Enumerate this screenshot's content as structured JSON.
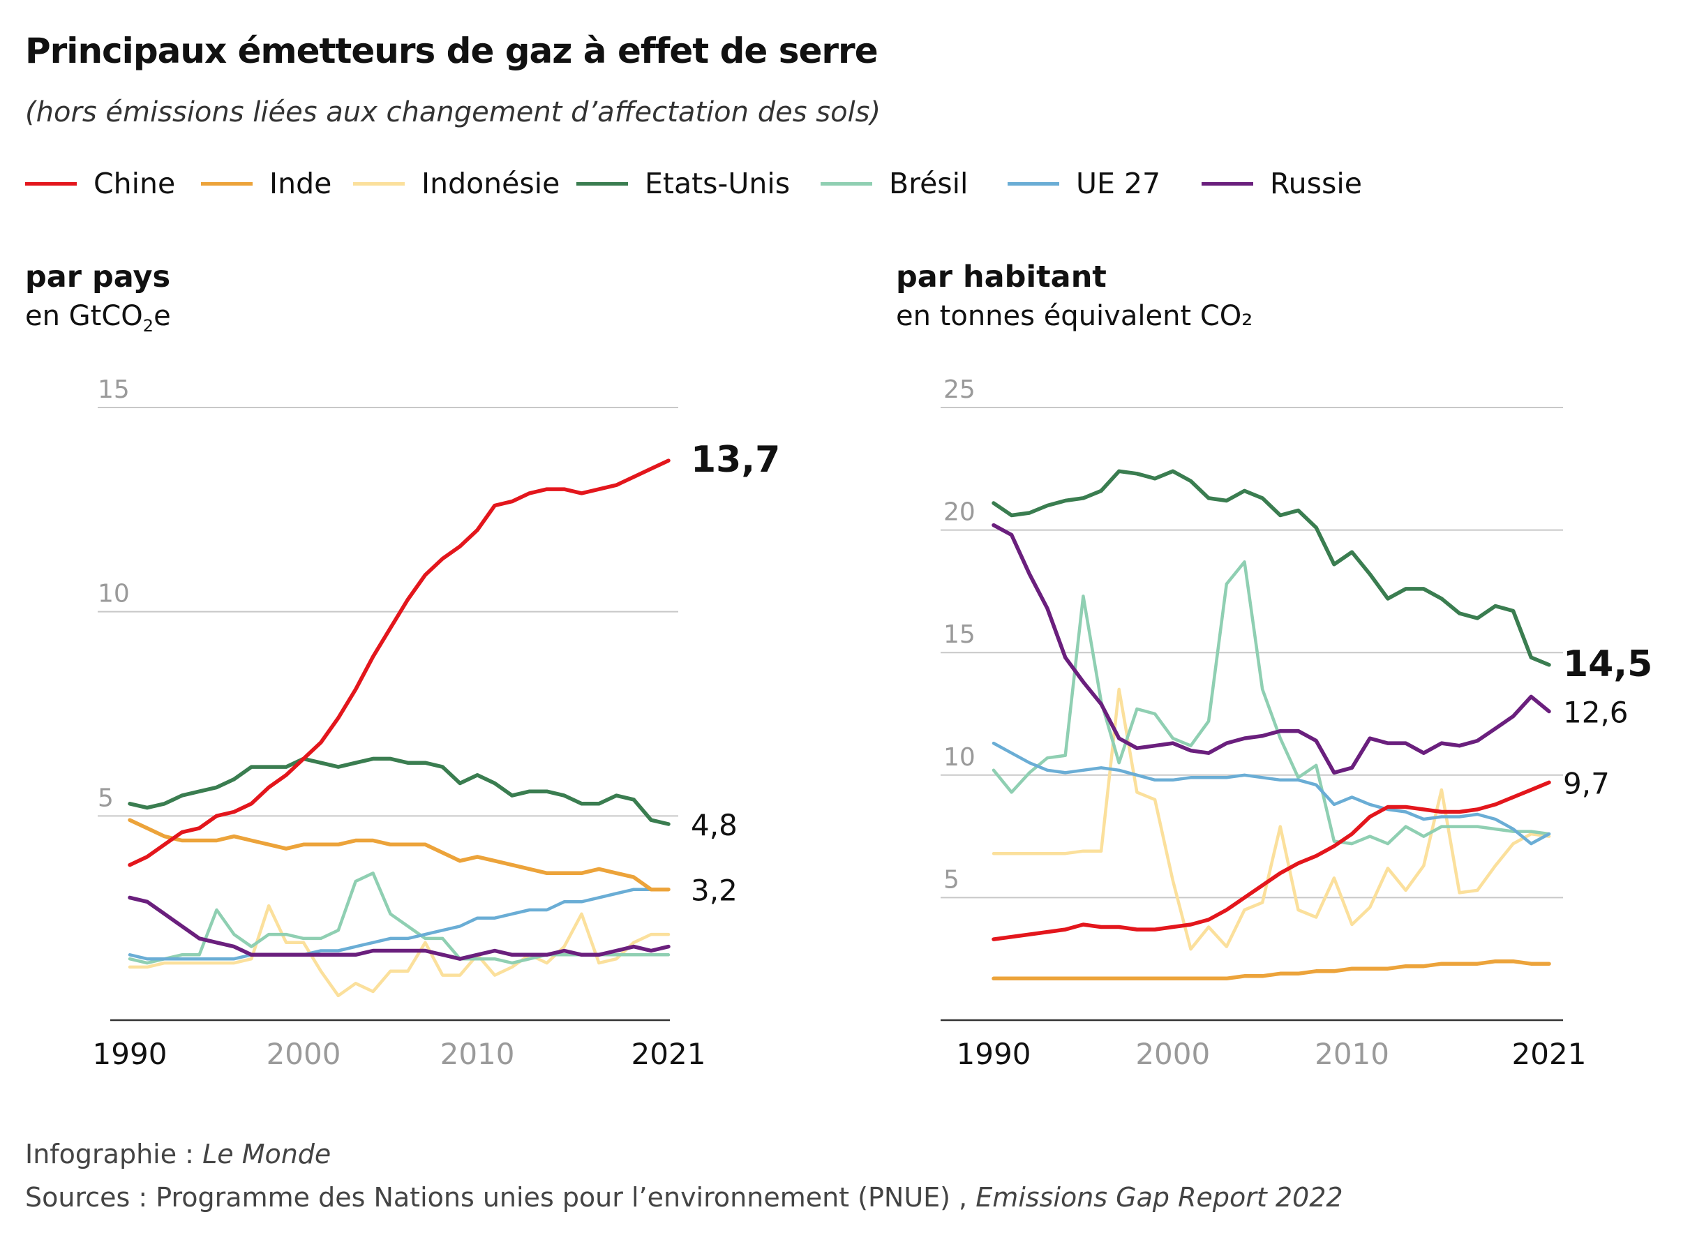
{
  "title": "Principaux émetteurs de gaz à effet  de serre",
  "subtitle": "(hors émissions liées aux changement d’affectation des sols)",
  "legend": [
    {
      "label": "Chine",
      "color": "#e3161c"
    },
    {
      "label": "Inde",
      "color": "#eca33a"
    },
    {
      "label": "Indonésie",
      "color": "#fbe09c"
    },
    {
      "label": "Etats-Unis",
      "color": "#3a7d50"
    },
    {
      "label": "Brésil",
      "color": "#8fcfb2"
    },
    {
      "label": "UE 27",
      "color": "#6aadd5"
    },
    {
      "label": "Russie",
      "color": "#6a1f7d"
    }
  ],
  "panels": {
    "left": {
      "title": "par pays",
      "unit_prefix": "en GtCO",
      "unit_sub": "2",
      "unit_suffix": "e"
    },
    "right": {
      "title": "par habitant",
      "unit": "en tonnes équivalent CO₂"
    }
  },
  "footer": {
    "line1_prefix": "Infographie : ",
    "line1_em": "Le Monde",
    "line2_prefix": "Sources : Programme des Nations unies pour l’environnement (PNUE) , ",
    "line2_em": "Emissions Gap Report 2022"
  },
  "chart_data": [
    {
      "type": "line",
      "title": "par pays",
      "ylabel": "en GtCO2e",
      "ylim": [
        0,
        15
      ],
      "xlim": [
        1990,
        2021
      ],
      "yticks": [
        5,
        10,
        15
      ],
      "xticks": [
        1990,
        2000,
        2010,
        2021
      ],
      "grid": true,
      "x": [
        1990,
        1991,
        1992,
        1993,
        1994,
        1995,
        1996,
        1997,
        1998,
        1999,
        2000,
        2001,
        2002,
        2003,
        2004,
        2005,
        2006,
        2007,
        2008,
        2009,
        2010,
        2011,
        2012,
        2013,
        2014,
        2015,
        2016,
        2017,
        2018,
        2019,
        2020,
        2021
      ],
      "series": [
        {
          "name": "Chine",
          "color": "#e3161c",
          "values": [
            3.8,
            4.0,
            4.3,
            4.6,
            4.7,
            5.0,
            5.1,
            5.3,
            5.7,
            6.0,
            6.4,
            6.8,
            7.4,
            8.1,
            8.9,
            9.6,
            10.3,
            10.9,
            11.3,
            11.6,
            12.0,
            12.6,
            12.7,
            12.9,
            13.0,
            13.0,
            12.9,
            13.0,
            13.1,
            13.3,
            13.5,
            13.7
          ]
        },
        {
          "name": "Inde",
          "color": "#eca33a",
          "values": [
            4.9,
            4.7,
            4.5,
            4.4,
            4.4,
            4.4,
            4.5,
            4.4,
            4.3,
            4.2,
            4.3,
            4.3,
            4.3,
            4.4,
            4.4,
            4.3,
            4.3,
            4.3,
            4.1,
            3.9,
            4.0,
            3.9,
            3.8,
            3.7,
            3.6,
            3.6,
            3.6,
            3.7,
            3.6,
            3.5,
            3.2,
            3.2
          ]
        },
        {
          "name": "Indonésie",
          "color": "#fbe09c",
          "values": [
            1.3,
            1.3,
            1.4,
            1.4,
            1.4,
            1.4,
            1.4,
            1.5,
            2.8,
            1.9,
            1.9,
            1.2,
            0.6,
            0.9,
            0.7,
            1.2,
            1.2,
            1.9,
            1.1,
            1.1,
            1.6,
            1.1,
            1.3,
            1.6,
            1.4,
            1.8,
            2.6,
            1.4,
            1.5,
            1.9,
            2.1,
            2.1
          ]
        },
        {
          "name": "Etats-Unis",
          "color": "#3a7d50",
          "values": [
            5.3,
            5.2,
            5.3,
            5.5,
            5.6,
            5.7,
            5.9,
            6.2,
            6.2,
            6.2,
            6.4,
            6.3,
            6.2,
            6.3,
            6.4,
            6.4,
            6.3,
            6.3,
            6.2,
            5.8,
            6.0,
            5.8,
            5.5,
            5.6,
            5.6,
            5.5,
            5.3,
            5.3,
            5.5,
            5.4,
            4.9,
            4.8
          ]
        },
        {
          "name": "Brésil",
          "color": "#8fcfb2",
          "values": [
            1.5,
            1.4,
            1.5,
            1.6,
            1.6,
            2.7,
            2.1,
            1.8,
            2.1,
            2.1,
            2.0,
            2.0,
            2.2,
            3.4,
            3.6,
            2.6,
            2.3,
            2.0,
            2.0,
            1.5,
            1.5,
            1.5,
            1.4,
            1.5,
            1.6,
            1.6,
            1.6,
            1.6,
            1.6,
            1.6,
            1.6,
            1.6
          ]
        },
        {
          "name": "UE 27",
          "color": "#6aadd5",
          "values": [
            1.6,
            1.5,
            1.5,
            1.5,
            1.5,
            1.5,
            1.5,
            1.6,
            1.6,
            1.6,
            1.6,
            1.7,
            1.7,
            1.8,
            1.9,
            2.0,
            2.0,
            2.1,
            2.2,
            2.3,
            2.5,
            2.5,
            2.6,
            2.7,
            2.7,
            2.9,
            2.9,
            3.0,
            3.1,
            3.2,
            3.2,
            3.2
          ]
        },
        {
          "name": "Russie",
          "color": "#6a1f7d",
          "values": [
            3.0,
            2.9,
            2.6,
            2.3,
            2.0,
            1.9,
            1.8,
            1.6,
            1.6,
            1.6,
            1.6,
            1.6,
            1.6,
            1.6,
            1.7,
            1.7,
            1.7,
            1.7,
            1.6,
            1.5,
            1.6,
            1.7,
            1.6,
            1.6,
            1.6,
            1.7,
            1.6,
            1.6,
            1.7,
            1.8,
            1.7,
            1.8
          ]
        }
      ],
      "end_labels": [
        {
          "series": "Chine",
          "text": "13,7",
          "bold": true
        },
        {
          "series": "Etats-Unis",
          "text": "4,8",
          "bold": false
        },
        {
          "series": "Inde",
          "text": "3,2",
          "bold": false
        }
      ]
    },
    {
      "type": "line",
      "title": "par habitant",
      "ylabel": "en tonnes équivalent CO₂",
      "ylim": [
        0,
        25
      ],
      "xlim": [
        1990,
        2021
      ],
      "yticks": [
        5,
        10,
        15,
        20,
        25
      ],
      "xticks": [
        1990,
        2000,
        2010,
        2021
      ],
      "grid": true,
      "x": [
        1990,
        1991,
        1992,
        1993,
        1994,
        1995,
        1996,
        1997,
        1998,
        1999,
        2000,
        2001,
        2002,
        2003,
        2004,
        2005,
        2006,
        2007,
        2008,
        2009,
        2010,
        2011,
        2012,
        2013,
        2014,
        2015,
        2016,
        2017,
        2018,
        2019,
        2020,
        2021
      ],
      "series": [
        {
          "name": "Chine",
          "color": "#e3161c",
          "values": [
            3.3,
            3.4,
            3.5,
            3.6,
            3.7,
            3.9,
            3.8,
            3.8,
            3.7,
            3.7,
            3.8,
            3.9,
            4.1,
            4.5,
            5.0,
            5.5,
            6.0,
            6.4,
            6.7,
            7.1,
            7.6,
            8.3,
            8.7,
            8.7,
            8.6,
            8.5,
            8.5,
            8.6,
            8.8,
            9.1,
            9.4,
            9.7
          ]
        },
        {
          "name": "Inde",
          "color": "#eca33a",
          "values": [
            1.7,
            1.7,
            1.7,
            1.7,
            1.7,
            1.7,
            1.7,
            1.7,
            1.7,
            1.7,
            1.7,
            1.7,
            1.7,
            1.7,
            1.8,
            1.8,
            1.9,
            1.9,
            2.0,
            2.0,
            2.1,
            2.1,
            2.1,
            2.2,
            2.2,
            2.3,
            2.3,
            2.3,
            2.4,
            2.4,
            2.3,
            2.3
          ]
        },
        {
          "name": "Indonésie",
          "color": "#fbe09c",
          "values": [
            6.8,
            6.8,
            6.8,
            6.8,
            6.8,
            6.9,
            6.9,
            13.5,
            9.3,
            9.0,
            5.7,
            2.9,
            3.8,
            3.0,
            4.5,
            4.8,
            7.9,
            4.5,
            4.2,
            5.8,
            3.9,
            4.6,
            6.2,
            5.3,
            6.3,
            9.4,
            5.2,
            5.3,
            6.3,
            7.2,
            7.6,
            7.5
          ]
        },
        {
          "name": "Etats-Unis",
          "color": "#3a7d50",
          "values": [
            21.1,
            20.6,
            20.7,
            21.0,
            21.2,
            21.3,
            21.6,
            22.4,
            22.3,
            22.1,
            22.4,
            22.0,
            21.3,
            21.2,
            21.6,
            21.3,
            20.6,
            20.8,
            20.1,
            18.6,
            19.1,
            18.2,
            17.2,
            17.6,
            17.6,
            17.2,
            16.6,
            16.4,
            16.9,
            16.7,
            14.8,
            14.5
          ]
        },
        {
          "name": "Brésil",
          "color": "#8fcfb2",
          "values": [
            10.2,
            9.3,
            10.1,
            10.7,
            10.8,
            17.3,
            13.0,
            10.5,
            12.7,
            12.5,
            11.5,
            11.2,
            12.2,
            17.8,
            18.7,
            13.5,
            11.5,
            9.9,
            10.4,
            7.3,
            7.2,
            7.5,
            7.2,
            7.9,
            7.5,
            7.9,
            7.9,
            7.9,
            7.8,
            7.7,
            7.7,
            7.6
          ]
        },
        {
          "name": "UE 27",
          "color": "#6aadd5",
          "values": [
            11.3,
            10.9,
            10.5,
            10.2,
            10.1,
            10.2,
            10.3,
            10.2,
            10.0,
            9.8,
            9.8,
            9.9,
            9.9,
            9.9,
            10.0,
            9.9,
            9.8,
            9.8,
            9.6,
            8.8,
            9.1,
            8.8,
            8.6,
            8.5,
            8.2,
            8.3,
            8.3,
            8.4,
            8.2,
            7.8,
            7.2,
            7.6
          ]
        },
        {
          "name": "Russie",
          "color": "#6a1f7d",
          "values": [
            20.2,
            19.8,
            18.2,
            16.8,
            14.8,
            13.8,
            12.9,
            11.5,
            11.1,
            11.2,
            11.3,
            11.0,
            10.9,
            11.3,
            11.5,
            11.6,
            11.8,
            11.8,
            11.4,
            10.1,
            10.3,
            11.5,
            11.3,
            11.3,
            10.9,
            11.3,
            11.2,
            11.4,
            11.9,
            12.4,
            13.2,
            12.6
          ]
        }
      ],
      "end_labels": [
        {
          "series": "Etats-Unis",
          "text": "14,5",
          "bold": true
        },
        {
          "series": "Russie",
          "text": "12,6",
          "bold": false
        },
        {
          "series": "Chine",
          "text": "9,7",
          "bold": false
        }
      ]
    }
  ]
}
